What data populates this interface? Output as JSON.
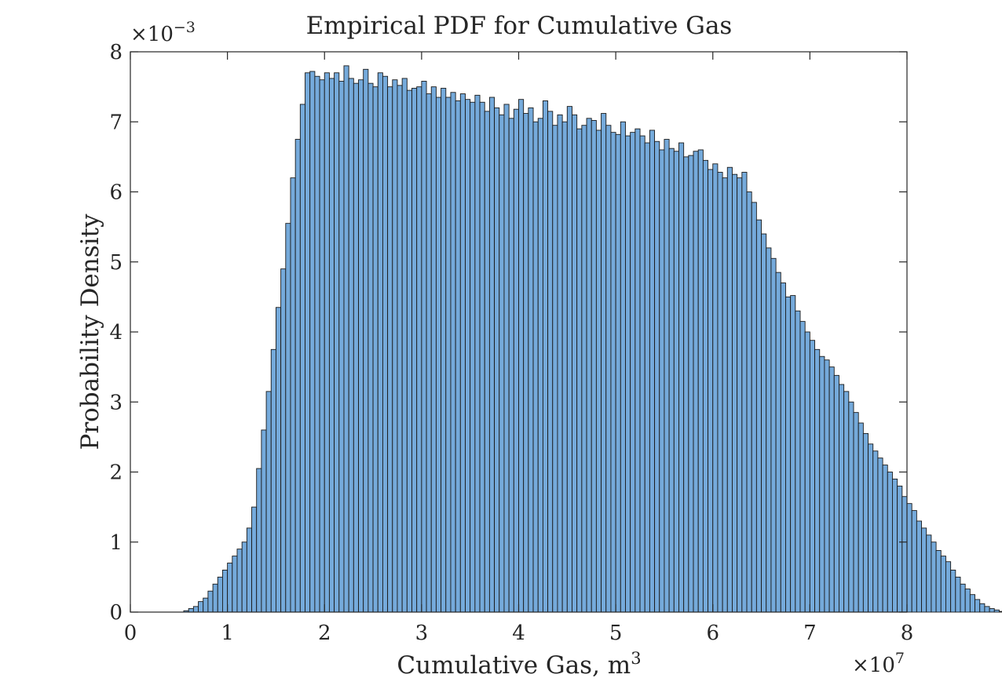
{
  "chart_data": {
    "type": "bar",
    "title": "Empirical PDF for Cumulative Gas",
    "xlabel": "Cumulative Gas, m",
    "xlabel_superscript": "3",
    "ylabel": "Probability Density",
    "xlim": [
      0,
      8
    ],
    "ylim": [
      0,
      8
    ],
    "x_multiplier": {
      "base": "×10",
      "exponent": "7"
    },
    "y_multiplier": {
      "base": "×10",
      "exponent": "−3"
    },
    "x_ticks": [
      "0",
      "1",
      "2",
      "3",
      "4",
      "5",
      "6",
      "7",
      "8"
    ],
    "y_ticks": [
      "0",
      "1",
      "2",
      "3",
      "4",
      "5",
      "6",
      "7",
      "8"
    ],
    "grid": false,
    "bin_width": 0.05,
    "bin_start": 0.55,
    "values": [
      0.02,
      0.05,
      0.08,
      0.15,
      0.2,
      0.3,
      0.4,
      0.5,
      0.6,
      0.7,
      0.8,
      0.9,
      1.0,
      1.2,
      1.5,
      2.05,
      2.6,
      3.15,
      3.75,
      4.35,
      4.9,
      5.55,
      6.2,
      6.75,
      7.25,
      7.7,
      7.72,
      7.65,
      7.6,
      7.7,
      7.62,
      7.7,
      7.58,
      7.8,
      7.62,
      7.55,
      7.6,
      7.75,
      7.55,
      7.5,
      7.7,
      7.65,
      7.5,
      7.6,
      7.52,
      7.62,
      7.45,
      7.48,
      7.5,
      7.58,
      7.4,
      7.5,
      7.35,
      7.48,
      7.35,
      7.42,
      7.3,
      7.4,
      7.32,
      7.28,
      7.38,
      7.28,
      7.15,
      7.35,
      7.2,
      7.1,
      7.25,
      7.05,
      7.18,
      7.32,
      7.12,
      7.2,
      7.0,
      7.05,
      7.3,
      7.15,
      6.95,
      7.1,
      7.0,
      7.22,
      7.1,
      6.9,
      6.95,
      7.05,
      7.02,
      6.88,
      7.12,
      6.95,
      6.85,
      6.82,
      7.0,
      6.8,
      6.85,
      6.9,
      6.8,
      6.7,
      6.88,
      6.72,
      6.6,
      6.75,
      6.62,
      6.58,
      6.7,
      6.5,
      6.52,
      6.58,
      6.6,
      6.45,
      6.32,
      6.4,
      6.28,
      6.2,
      6.35,
      6.25,
      6.2,
      6.28,
      6.0,
      5.85,
      5.6,
      5.4,
      5.2,
      5.05,
      4.85,
      4.7,
      4.5,
      4.52,
      4.3,
      4.15,
      4.0,
      3.88,
      3.75,
      3.65,
      3.6,
      3.5,
      3.38,
      3.25,
      3.15,
      3.0,
      2.85,
      2.7,
      2.55,
      2.4,
      2.3,
      2.2,
      2.1,
      2.0,
      1.9,
      1.8,
      1.65,
      1.55,
      1.45,
      1.3,
      1.2,
      1.1,
      1.0,
      0.88,
      0.8,
      0.72,
      0.6,
      0.5,
      0.4,
      0.33,
      0.25,
      0.18,
      0.12,
      0.08,
      0.05,
      0.03,
      0.01
    ],
    "bar_color": "#75aadb",
    "edge_color": "#1a1a1a"
  }
}
